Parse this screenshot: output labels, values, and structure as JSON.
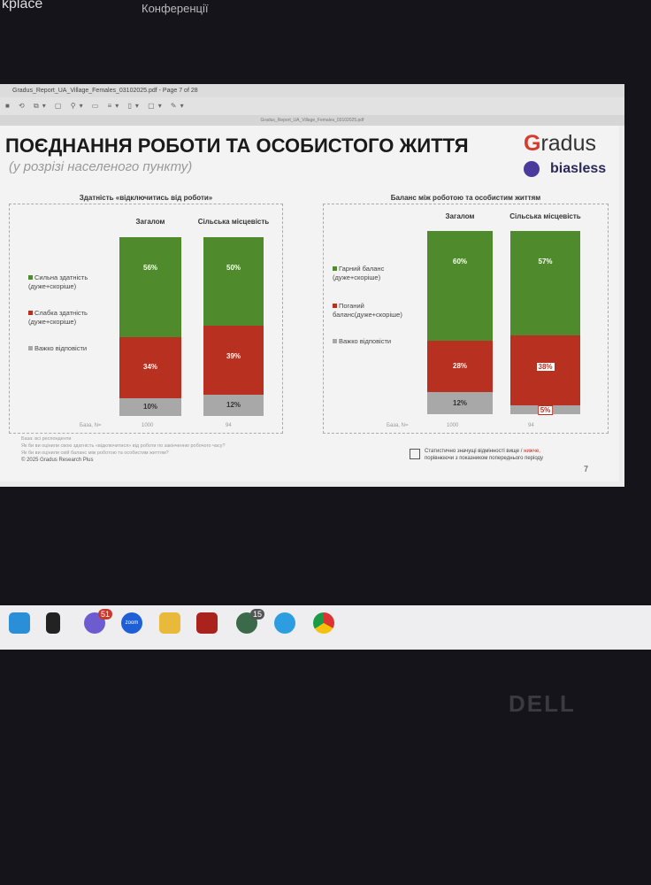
{
  "top": {
    "left_text": "kplace",
    "right_text": "Конференції"
  },
  "viewer": {
    "window_title": "Gradus_Report_UA_Village_Females_03102025.pdf - Page 7 of 28",
    "tab_title": "Gradus_Report_UA_Village_Females_03102025.pdf"
  },
  "slide": {
    "title": "ПОЄДНАННЯ РОБОТИ ТА ОСОБИСТОГО ЖИТТЯ",
    "subtitle": "(у розрізі населеного пункту)",
    "logo_gradus": "Gradus",
    "logo_biasless": "biasless",
    "notes": [
      "База: всі респонденти",
      "Як би ви оцінили свою здатність «відключитися» від роботи по закінченню робочого часу?",
      "Як би ви оцінили свій баланс між роботою та особистим життям?"
    ],
    "copyright": "© 2025 Gradus Research Plus",
    "significance": {
      "line1a": "Статистично значущі відмінності вище /",
      "line1b": "нижче,",
      "line2": "порівнюючи з показником попереднього періоду"
    },
    "page_number": "7"
  },
  "chart_data": [
    {
      "type": "bar",
      "stacked": true,
      "title": "Здатність «відключитись від роботи»",
      "categories": [
        "Загалом",
        "Сільська місцевість"
      ],
      "series": [
        {
          "name": "Сильна здатність (дуже+скоріше)",
          "color": "#4f8a2c",
          "values": [
            56,
            50
          ]
        },
        {
          "name": "Слабка здатність (дуже+скоріше)",
          "color": "#b8301f",
          "values": [
            34,
            39
          ]
        },
        {
          "name": "Важко відповісти",
          "color": "#a8a8a8",
          "values": [
            10,
            12
          ]
        }
      ],
      "base_label": "База, N=",
      "base": [
        "1000",
        "94"
      ],
      "labels": [
        [
          "56%",
          "34%",
          "10%"
        ],
        [
          "50%",
          "39%",
          "12%"
        ]
      ]
    },
    {
      "type": "bar",
      "stacked": true,
      "title": "Баланс між роботою та особистим життям",
      "categories": [
        "Загалом",
        "Сільська місцевість"
      ],
      "series": [
        {
          "name": "Гарний баланс (дуже+скоріше)",
          "color": "#4f8a2c",
          "values": [
            60,
            57
          ]
        },
        {
          "name": "Поганий баланс(дуже+скоріше)",
          "color": "#b8301f",
          "values": [
            28,
            38
          ]
        },
        {
          "name": "Важко відповісти",
          "color": "#a8a8a8",
          "values": [
            12,
            5
          ]
        }
      ],
      "base_label": "База, N=",
      "base": [
        "1000",
        "94"
      ],
      "labels": [
        [
          "60%",
          "28%",
          "12%"
        ],
        [
          "57%",
          "38%",
          "5%"
        ]
      ],
      "boxed_labels": [
        [
          false,
          false,
          false
        ],
        [
          false,
          true,
          true
        ]
      ]
    }
  ],
  "taskbar": {
    "viber_badge": "51",
    "zoom_label": "zoom",
    "whatsapp_badge": "15"
  },
  "brand": "DELL"
}
